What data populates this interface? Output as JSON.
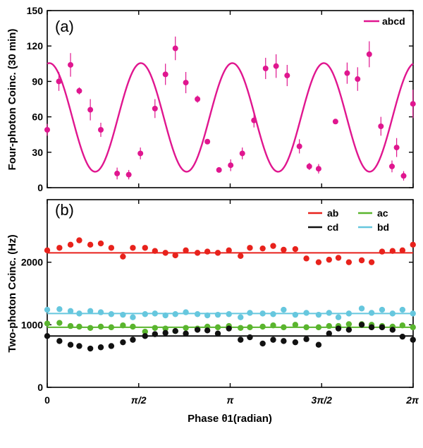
{
  "chart_data": [
    {
      "type": "scatter",
      "panel_label": "(a)",
      "ylabel": "Four-photon Coinc. (30 min)",
      "xlabel": "",
      "xlim": [
        0,
        6.2832
      ],
      "ylim": [
        0,
        150
      ],
      "yticks": [
        0,
        30,
        60,
        90,
        120,
        150
      ],
      "legend_position": "top-right",
      "series": [
        {
          "name": "abcd",
          "color": "#e0168f",
          "points": [
            {
              "x": 0.0,
              "y": 49,
              "err": 5
            },
            {
              "x": 0.2,
              "y": 90,
              "err": 8
            },
            {
              "x": 0.4,
              "y": 104,
              "err": 10
            },
            {
              "x": 0.55,
              "y": 82,
              "err": 3
            },
            {
              "x": 0.74,
              "y": 66,
              "err": 9
            },
            {
              "x": 0.92,
              "y": 49,
              "err": 6
            },
            {
              "x": 1.2,
              "y": 12,
              "err": 5
            },
            {
              "x": 1.4,
              "y": 11,
              "err": 4
            },
            {
              "x": 1.6,
              "y": 29,
              "err": 5
            },
            {
              "x": 1.85,
              "y": 67,
              "err": 8
            },
            {
              "x": 2.03,
              "y": 96,
              "err": 9
            },
            {
              "x": 2.2,
              "y": 118,
              "err": 10
            },
            {
              "x": 2.38,
              "y": 89,
              "err": 9
            },
            {
              "x": 2.58,
              "y": 75,
              "err": 3
            },
            {
              "x": 2.75,
              "y": 39,
              "err": 2
            },
            {
              "x": 2.95,
              "y": 15,
              "err": 2
            },
            {
              "x": 3.15,
              "y": 19,
              "err": 5
            },
            {
              "x": 3.35,
              "y": 29,
              "err": 5
            },
            {
              "x": 3.55,
              "y": 57,
              "err": 6
            },
            {
              "x": 3.75,
              "y": 101,
              "err": 9
            },
            {
              "x": 3.93,
              "y": 103,
              "err": 10
            },
            {
              "x": 4.12,
              "y": 95,
              "err": 9
            },
            {
              "x": 4.33,
              "y": 35,
              "err": 6
            },
            {
              "x": 4.5,
              "y": 18,
              "err": 3
            },
            {
              "x": 4.66,
              "y": 16,
              "err": 4
            },
            {
              "x": 4.95,
              "y": 56,
              "err": 1
            },
            {
              "x": 5.15,
              "y": 97,
              "err": 9
            },
            {
              "x": 5.33,
              "y": 92,
              "err": 10
            },
            {
              "x": 5.53,
              "y": 113,
              "err": 11
            },
            {
              "x": 5.73,
              "y": 52,
              "err": 8
            },
            {
              "x": 5.92,
              "y": 18,
              "err": 5
            },
            {
              "x": 6.12,
              "y": 10,
              "err": 4
            },
            {
              "x": 6.0,
              "y": 34,
              "err": 8
            },
            {
              "x": 6.28,
              "y": 71,
              "err": 12
            }
          ],
          "fit": {
            "offset": 59.5,
            "amplitude": 46,
            "frequency": 4,
            "phase": 1.42
          }
        }
      ]
    },
    {
      "type": "scatter",
      "panel_label": "(b)",
      "ylabel": "Two-photon Coinc. (Hz)",
      "xlabel": "Phase θ1(radian)",
      "xlim": [
        0,
        6.2832
      ],
      "ylim": [
        0,
        3000
      ],
      "yticks": [
        0,
        1000,
        2000
      ],
      "xticks": [
        {
          "value": 0,
          "label": "0"
        },
        {
          "value": 1.5708,
          "label": "π/2"
        },
        {
          "value": 3.1416,
          "label": "π"
        },
        {
          "value": 4.7124,
          "label": "3π/2"
        },
        {
          "value": 6.2832,
          "label": "2π"
        }
      ],
      "legend_position": "top-right",
      "series": [
        {
          "name": "ab",
          "color": "#e8221c",
          "fit_level": 2150,
          "x": [
            0.0,
            0.21,
            0.4,
            0.55,
            0.74,
            0.92,
            1.1,
            1.3,
            1.47,
            1.68,
            1.85,
            2.03,
            2.2,
            2.38,
            2.58,
            2.75,
            2.93,
            3.12,
            3.32,
            3.48,
            3.7,
            3.88,
            4.06,
            4.26,
            4.45,
            4.66,
            4.84,
            5.0,
            5.18,
            5.4,
            5.57,
            5.75,
            5.93,
            6.1,
            6.28
          ],
          "y": [
            2190,
            2230,
            2280,
            2350,
            2280,
            2300,
            2230,
            2090,
            2230,
            2230,
            2180,
            2150,
            2110,
            2190,
            2150,
            2170,
            2150,
            2190,
            2100,
            2230,
            2220,
            2260,
            2200,
            2210,
            2060,
            2000,
            2040,
            2070,
            2000,
            2030,
            2000,
            2170,
            2180,
            2190,
            2280
          ]
        },
        {
          "name": "ac",
          "color": "#5ab52e",
          "fit_level": 960,
          "x": [
            0.0,
            0.21,
            0.4,
            0.55,
            0.74,
            0.92,
            1.1,
            1.3,
            1.47,
            1.68,
            1.85,
            2.03,
            2.2,
            2.38,
            2.58,
            2.75,
            2.93,
            3.12,
            3.32,
            3.48,
            3.7,
            3.88,
            4.06,
            4.26,
            4.45,
            4.66,
            4.84,
            5.0,
            5.18,
            5.4,
            5.57,
            5.75,
            5.93,
            6.1,
            6.28
          ],
          "y": [
            1020,
            1030,
            980,
            970,
            950,
            970,
            960,
            990,
            970,
            890,
            950,
            940,
            900,
            950,
            940,
            970,
            960,
            980,
            950,
            960,
            970,
            990,
            960,
            1000,
            960,
            960,
            980,
            980,
            1010,
            1010,
            1000,
            980,
            970,
            990,
            960
          ]
        },
        {
          "name": "cd",
          "color": "#111111",
          "fit_level": 820,
          "x": [
            0.0,
            0.21,
            0.4,
            0.55,
            0.74,
            0.92,
            1.1,
            1.3,
            1.47,
            1.68,
            1.85,
            2.03,
            2.2,
            2.38,
            2.58,
            2.75,
            2.93,
            3.12,
            3.32,
            3.48,
            3.7,
            3.88,
            4.06,
            4.26,
            4.45,
            4.66,
            4.84,
            5.0,
            5.18,
            5.4,
            5.57,
            5.75,
            5.93,
            6.1,
            6.28
          ],
          "y": [
            820,
            740,
            680,
            660,
            620,
            640,
            660,
            720,
            760,
            820,
            850,
            870,
            900,
            860,
            920,
            910,
            860,
            940,
            760,
            800,
            700,
            760,
            740,
            720,
            770,
            680,
            860,
            940,
            920,
            1000,
            960,
            960,
            920,
            810,
            760
          ]
        },
        {
          "name": "bd",
          "color": "#66c7de",
          "fit_level": 1180,
          "x": [
            0.0,
            0.21,
            0.4,
            0.55,
            0.74,
            0.92,
            1.1,
            1.3,
            1.47,
            1.68,
            1.85,
            2.03,
            2.2,
            2.38,
            2.58,
            2.75,
            2.93,
            3.12,
            3.32,
            3.48,
            3.7,
            3.88,
            4.06,
            4.26,
            4.45,
            4.66,
            4.84,
            5.0,
            5.18,
            5.4,
            5.57,
            5.75,
            5.93,
            6.1,
            6.28
          ],
          "y": [
            1240,
            1250,
            1220,
            1180,
            1220,
            1200,
            1170,
            1160,
            1120,
            1170,
            1180,
            1150,
            1170,
            1200,
            1170,
            1150,
            1160,
            1170,
            1120,
            1190,
            1180,
            1170,
            1240,
            1160,
            1190,
            1160,
            1190,
            1120,
            1180,
            1260,
            1190,
            1240,
            1180,
            1240,
            1180
          ]
        }
      ]
    }
  ]
}
